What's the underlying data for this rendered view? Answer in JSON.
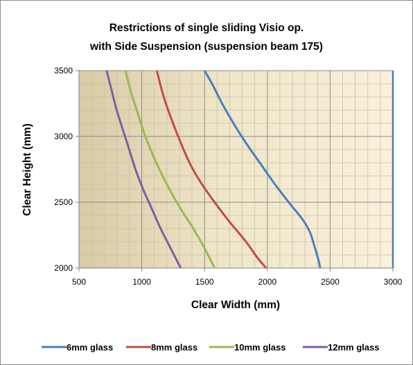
{
  "chart_data": {
    "type": "line",
    "title_lines": [
      "Restrictions of single sliding Visio op.",
      "with Side Suspension (suspension beam 175)"
    ],
    "xlabel": "Clear Width (mm)",
    "ylabel": "Clear Height (mm)",
    "xlim": [
      500,
      3000
    ],
    "ylim": [
      2000,
      3500
    ],
    "x_ticks": [
      "500",
      "1000",
      "1500",
      "2000",
      "2500",
      "3000"
    ],
    "y_ticks": [
      "2000",
      "2500",
      "3000",
      "3500"
    ],
    "grid": true,
    "legend_position": "bottom",
    "series": [
      {
        "name": "6mm glass",
        "color": "#4a7ebb",
        "points": [
          [
            1500,
            3500
          ],
          [
            1560,
            3400
          ],
          [
            1640,
            3250
          ],
          [
            1730,
            3100
          ],
          [
            1830,
            2950
          ],
          [
            1940,
            2800
          ],
          [
            2050,
            2650
          ],
          [
            2170,
            2500
          ],
          [
            2280,
            2370
          ],
          [
            2340,
            2270
          ],
          [
            2380,
            2150
          ],
          [
            2410,
            2050
          ],
          [
            2420,
            2000
          ]
        ]
      },
      {
        "name": "8mm glass",
        "color": "#be4b48",
        "points": [
          [
            1120,
            3500
          ],
          [
            1160,
            3350
          ],
          [
            1210,
            3200
          ],
          [
            1290,
            3000
          ],
          [
            1380,
            2800
          ],
          [
            1470,
            2650
          ],
          [
            1580,
            2500
          ],
          [
            1700,
            2350
          ],
          [
            1830,
            2200
          ],
          [
            1920,
            2080
          ],
          [
            1990,
            2000
          ]
        ]
      },
      {
        "name": "10mm glass",
        "color": "#98b954",
        "points": [
          [
            870,
            3500
          ],
          [
            910,
            3350
          ],
          [
            960,
            3200
          ],
          [
            1010,
            3050
          ],
          [
            1070,
            2900
          ],
          [
            1140,
            2750
          ],
          [
            1220,
            2600
          ],
          [
            1310,
            2450
          ],
          [
            1410,
            2300
          ],
          [
            1500,
            2150
          ],
          [
            1580,
            2000
          ]
        ]
      },
      {
        "name": "12mm glass",
        "color": "#7d60a0",
        "points": [
          [
            720,
            3500
          ],
          [
            760,
            3350
          ],
          [
            800,
            3200
          ],
          [
            850,
            3050
          ],
          [
            900,
            2900
          ],
          [
            950,
            2750
          ],
          [
            1010,
            2600
          ],
          [
            1080,
            2450
          ],
          [
            1150,
            2300
          ],
          [
            1230,
            2150
          ],
          [
            1310,
            2000
          ]
        ]
      }
    ]
  }
}
